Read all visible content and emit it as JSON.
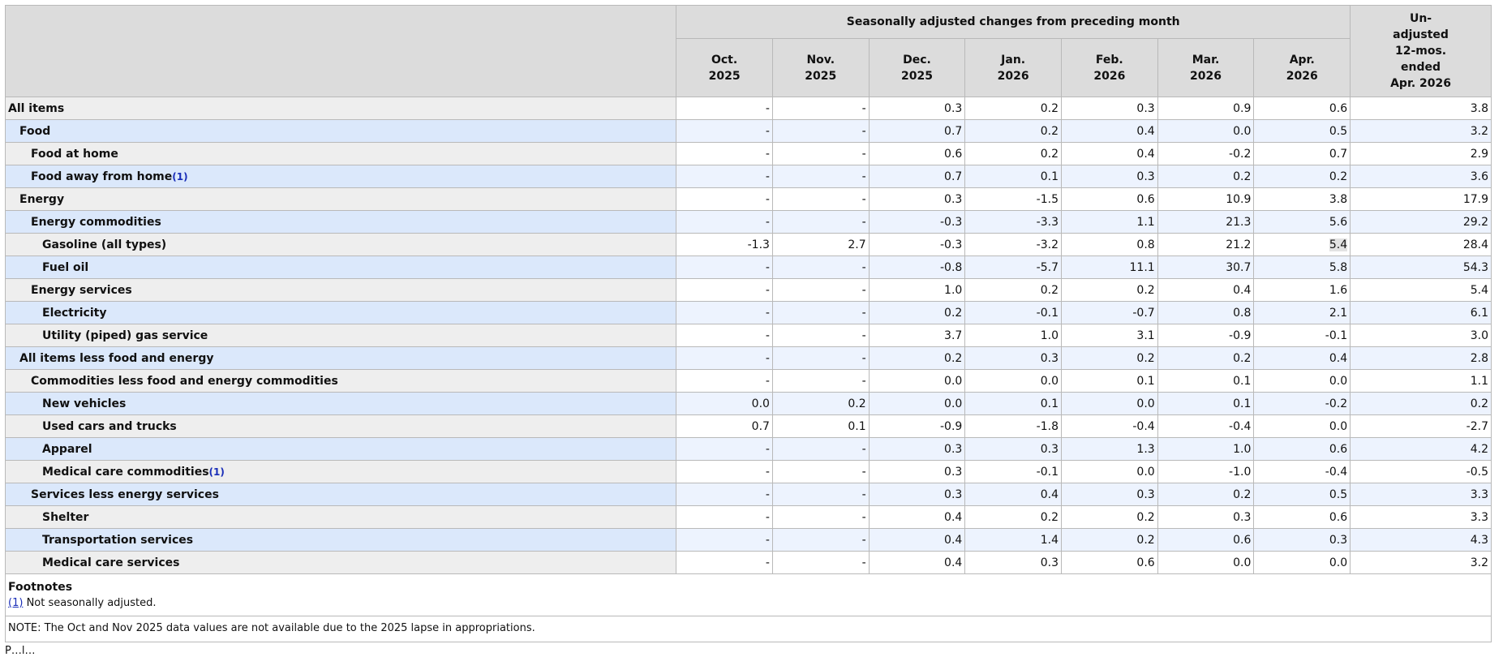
{
  "header": {
    "group_label": "Seasonally adjusted changes from preceding month",
    "months": [
      [
        "Oct.",
        "2025"
      ],
      [
        "Nov.",
        "2025"
      ],
      [
        "Dec.",
        "2025"
      ],
      [
        "Jan.",
        "2026"
      ],
      [
        "Feb.",
        "2026"
      ],
      [
        "Mar.",
        "2026"
      ],
      [
        "Apr.",
        "2026"
      ]
    ],
    "unadjusted": [
      "Un-",
      "adjusted",
      "12-mos.",
      "ended",
      "Apr. 2026"
    ]
  },
  "rows": [
    {
      "label": "All items",
      "indent": 0,
      "fn": "",
      "values": [
        "-",
        "-",
        "0.3",
        "0.2",
        "0.3",
        "0.9",
        "0.6"
      ],
      "annual": "3.8"
    },
    {
      "label": "Food",
      "indent": 1,
      "fn": "",
      "values": [
        "-",
        "-",
        "0.7",
        "0.2",
        "0.4",
        "0.0",
        "0.5"
      ],
      "annual": "3.2"
    },
    {
      "label": "Food at home",
      "indent": 2,
      "fn": "",
      "values": [
        "-",
        "-",
        "0.6",
        "0.2",
        "0.4",
        "-0.2",
        "0.7"
      ],
      "annual": "2.9"
    },
    {
      "label": "Food away from home",
      "indent": 2,
      "fn": "(1)",
      "values": [
        "-",
        "-",
        "0.7",
        "0.1",
        "0.3",
        "0.2",
        "0.2"
      ],
      "annual": "3.6"
    },
    {
      "label": "Energy",
      "indent": 1,
      "fn": "",
      "values": [
        "-",
        "-",
        "0.3",
        "-1.5",
        "0.6",
        "10.9",
        "3.8"
      ],
      "annual": "17.9"
    },
    {
      "label": "Energy commodities",
      "indent": 2,
      "fn": "",
      "values": [
        "-",
        "-",
        "-0.3",
        "-3.3",
        "1.1",
        "21.3",
        "5.6"
      ],
      "annual": "29.2"
    },
    {
      "label": "Gasoline (all types)",
      "indent": 3,
      "fn": "",
      "values": [
        "-1.3",
        "2.7",
        "-0.3",
        "-3.2",
        "0.8",
        "21.2",
        "5.4"
      ],
      "annual": "28.4",
      "highlight": 6
    },
    {
      "label": "Fuel oil",
      "indent": 3,
      "fn": "",
      "values": [
        "-",
        "-",
        "-0.8",
        "-5.7",
        "11.1",
        "30.7",
        "5.8"
      ],
      "annual": "54.3"
    },
    {
      "label": "Energy services",
      "indent": 2,
      "fn": "",
      "values": [
        "-",
        "-",
        "1.0",
        "0.2",
        "0.2",
        "0.4",
        "1.6"
      ],
      "annual": "5.4"
    },
    {
      "label": "Electricity",
      "indent": 3,
      "fn": "",
      "values": [
        "-",
        "-",
        "0.2",
        "-0.1",
        "-0.7",
        "0.8",
        "2.1"
      ],
      "annual": "6.1"
    },
    {
      "label": "Utility (piped) gas service",
      "indent": 3,
      "fn": "",
      "values": [
        "-",
        "-",
        "3.7",
        "1.0",
        "3.1",
        "-0.9",
        "-0.1"
      ],
      "annual": "3.0"
    },
    {
      "label": "All items less food and energy",
      "indent": 1,
      "fn": "",
      "values": [
        "-",
        "-",
        "0.2",
        "0.3",
        "0.2",
        "0.2",
        "0.4"
      ],
      "annual": "2.8"
    },
    {
      "label": "Commodities less food and energy commodities",
      "indent": 2,
      "fn": "",
      "values": [
        "-",
        "-",
        "0.0",
        "0.0",
        "0.1",
        "0.1",
        "0.0"
      ],
      "annual": "1.1"
    },
    {
      "label": "New vehicles",
      "indent": 3,
      "fn": "",
      "values": [
        "0.0",
        "0.2",
        "0.0",
        "0.1",
        "0.0",
        "0.1",
        "-0.2"
      ],
      "annual": "0.2"
    },
    {
      "label": "Used cars and trucks",
      "indent": 3,
      "fn": "",
      "values": [
        "0.7",
        "0.1",
        "-0.9",
        "-1.8",
        "-0.4",
        "-0.4",
        "0.0"
      ],
      "annual": "-2.7"
    },
    {
      "label": "Apparel",
      "indent": 3,
      "fn": "",
      "values": [
        "-",
        "-",
        "0.3",
        "0.3",
        "1.3",
        "1.0",
        "0.6"
      ],
      "annual": "4.2"
    },
    {
      "label": "Medical care commodities",
      "indent": 3,
      "fn": "(1)",
      "values": [
        "-",
        "-",
        "0.3",
        "-0.1",
        "0.0",
        "-1.0",
        "-0.4"
      ],
      "annual": "-0.5"
    },
    {
      "label": "Services less energy services",
      "indent": 2,
      "fn": "",
      "values": [
        "-",
        "-",
        "0.3",
        "0.4",
        "0.3",
        "0.2",
        "0.5"
      ],
      "annual": "3.3"
    },
    {
      "label": "Shelter",
      "indent": 3,
      "fn": "",
      "values": [
        "-",
        "-",
        "0.4",
        "0.2",
        "0.2",
        "0.3",
        "0.6"
      ],
      "annual": "3.3"
    },
    {
      "label": "Transportation services",
      "indent": 3,
      "fn": "",
      "values": [
        "-",
        "-",
        "0.4",
        "1.4",
        "0.2",
        "0.6",
        "0.3"
      ],
      "annual": "4.3"
    },
    {
      "label": "Medical care services",
      "indent": 3,
      "fn": "",
      "values": [
        "-",
        "-",
        "0.4",
        "0.3",
        "0.6",
        "0.0",
        "0.0"
      ],
      "annual": "3.2"
    }
  ],
  "footnotes": {
    "title": "Footnotes",
    "items": [
      {
        "ref": "(1)",
        "text": "Not seasonally adjusted."
      }
    ]
  },
  "note": "NOTE: The Oct and Nov 2025 data values are not available due to the 2025 lapse in appropriations.",
  "trailing_text": "P…l…"
}
